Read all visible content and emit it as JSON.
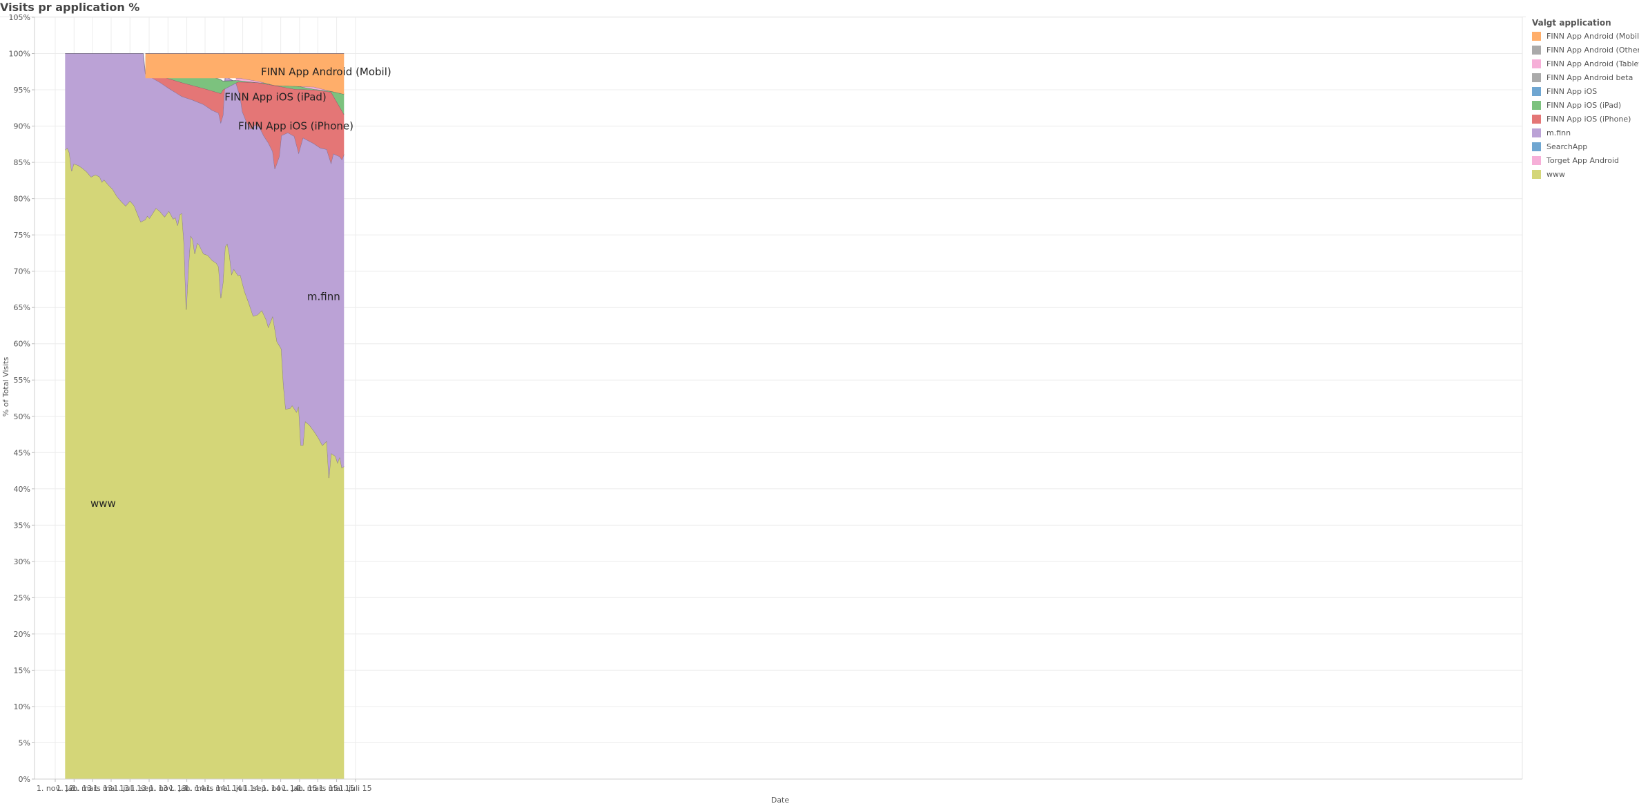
{
  "chart_data": {
    "type": "area",
    "title": "Visits pr application %",
    "xlabel": "Date",
    "ylabel": "% of Total Visits",
    "ylim": [
      0,
      105
    ],
    "y_ticks": [
      "0%",
      "5%",
      "10%",
      "15%",
      "20%",
      "25%",
      "30%",
      "35%",
      "40%",
      "45%",
      "50%",
      "55%",
      "60%",
      "65%",
      "70%",
      "75%",
      "80%",
      "85%",
      "90%",
      "95%",
      "100%",
      "105%"
    ],
    "x_ticks": [
      {
        "label": "1. nov. 12",
        "date": "2012-11-01"
      },
      {
        "label": "1. jan. 13",
        "date": "2013-01-01"
      },
      {
        "label": "1. mars 13",
        "date": "2013-03-01"
      },
      {
        "label": "1. mai 13",
        "date": "2013-05-01"
      },
      {
        "label": "1. juli 13",
        "date": "2013-07-01"
      },
      {
        "label": "1. sep. 13",
        "date": "2013-09-01"
      },
      {
        "label": "1. nov. 13",
        "date": "2013-11-01"
      },
      {
        "label": "1. jan. 14",
        "date": "2014-01-01"
      },
      {
        "label": "1. mars 14",
        "date": "2014-03-01"
      },
      {
        "label": "1. mai 14",
        "date": "2014-05-01"
      },
      {
        "label": "1. juli 14",
        "date": "2014-07-01"
      },
      {
        "label": "1. sep. 14",
        "date": "2014-09-01"
      },
      {
        "label": "1. nov. 14",
        "date": "2014-11-01"
      },
      {
        "label": "1. jan. 15",
        "date": "2015-01-01"
      },
      {
        "label": "1. mars 15",
        "date": "2015-03-01"
      },
      {
        "label": "1. mai 15",
        "date": "2015-05-01"
      },
      {
        "label": "1. juli 15",
        "date": "2015-07-01"
      }
    ],
    "grid": true,
    "legend_position": "right",
    "legend_title": "Valgt application",
    "legend": [
      {
        "name": "FINN App Android (Mobil)",
        "color": "#FFAE6A"
      },
      {
        "name": "FINN App Android (Other)",
        "color": "#AAAAAA"
      },
      {
        "name": "FINN App Android (Tablet)",
        "color": "#F6AFD8"
      },
      {
        "name": "FINN App Android beta",
        "color": "#AAAAAA"
      },
      {
        "name": "FINN App iOS",
        "color": "#6FA6D1"
      },
      {
        "name": "FINN App iOS (iPad)",
        "color": "#7CC27E"
      },
      {
        "name": "FINN App iOS (iPhone)",
        "color": "#E47676"
      },
      {
        "name": "m.finn",
        "color": "#BBA2D6"
      },
      {
        "name": "SearchApp",
        "color": "#6FA6D1"
      },
      {
        "name": "Torget App Android",
        "color": "#F6AFD8"
      },
      {
        "name": "www",
        "color": "#D4D678"
      }
    ],
    "annotations": [
      {
        "text": "FINN App Android (Mobil)",
        "date": "2015-03-28",
        "y": 97.5
      },
      {
        "text": "FINN App iOS (iPad)",
        "date": "2014-10-15",
        "y": 94
      },
      {
        "text": "FINN App iOS (iPhone)",
        "date": "2014-12-20",
        "y": 90
      },
      {
        "text": "m.finn",
        "date": "2015-03-20",
        "y": 66.5
      },
      {
        "text": "www",
        "date": "2013-04-05",
        "y": 38
      }
    ],
    "series": [
      {
        "name": "www",
        "color": "#D4D678",
        "points": [
          [
            "2012-12-03",
            86.7
          ],
          [
            "2012-12-10",
            87.0
          ],
          [
            "2012-12-17",
            86.3
          ],
          [
            "2012-12-24",
            83.8
          ],
          [
            "2012-12-31",
            84.8
          ],
          [
            "2013-01-14",
            84.6
          ],
          [
            "2013-01-28",
            84.2
          ],
          [
            "2013-02-11",
            83.7
          ],
          [
            "2013-02-25",
            83.0
          ],
          [
            "2013-03-11",
            83.3
          ],
          [
            "2013-03-25",
            83.0
          ],
          [
            "2013-04-01",
            82.3
          ],
          [
            "2013-04-08",
            82.6
          ],
          [
            "2013-04-22",
            81.9
          ],
          [
            "2013-05-06",
            81.3
          ],
          [
            "2013-05-20",
            80.3
          ],
          [
            "2013-06-03",
            79.6
          ],
          [
            "2013-06-17",
            79.0
          ],
          [
            "2013-07-01",
            79.7
          ],
          [
            "2013-07-15",
            79.0
          ],
          [
            "2013-07-29",
            77.5
          ],
          [
            "2013-08-05",
            76.8
          ],
          [
            "2013-08-19",
            77.1
          ],
          [
            "2013-08-26",
            77.6
          ],
          [
            "2013-09-02",
            77.3
          ],
          [
            "2013-09-23",
            78.7
          ],
          [
            "2013-10-07",
            78.2
          ],
          [
            "2013-10-21",
            77.5
          ],
          [
            "2013-11-04",
            78.3
          ],
          [
            "2013-11-18",
            77.2
          ],
          [
            "2013-11-25",
            77.4
          ],
          [
            "2013-12-02",
            76.3
          ],
          [
            "2013-12-09",
            77.8
          ],
          [
            "2013-12-16",
            78.0
          ],
          [
            "2013-12-23",
            73.7
          ],
          [
            "2013-12-30",
            64.7
          ],
          [
            "2014-01-06",
            70.4
          ],
          [
            "2014-01-13",
            74.9
          ],
          [
            "2014-01-20",
            74.4
          ],
          [
            "2014-01-27",
            72.4
          ],
          [
            "2014-02-03",
            73.9
          ],
          [
            "2014-02-10",
            73.6
          ],
          [
            "2014-02-24",
            72.4
          ],
          [
            "2014-03-10",
            72.2
          ],
          [
            "2014-03-24",
            71.5
          ],
          [
            "2014-04-07",
            71.1
          ],
          [
            "2014-04-14",
            70.6
          ],
          [
            "2014-04-21",
            66.3
          ],
          [
            "2014-04-28",
            68.4
          ],
          [
            "2014-05-05",
            73.4
          ],
          [
            "2014-05-12",
            73.8
          ],
          [
            "2014-05-19",
            72.3
          ],
          [
            "2014-05-26",
            69.6
          ],
          [
            "2014-06-02",
            70.3
          ],
          [
            "2014-06-16",
            69.4
          ],
          [
            "2014-06-23",
            69.5
          ],
          [
            "2014-07-07",
            67.2
          ],
          [
            "2014-07-21",
            65.6
          ],
          [
            "2014-08-04",
            63.8
          ],
          [
            "2014-08-18",
            64.0
          ],
          [
            "2014-09-01",
            64.6
          ],
          [
            "2014-09-15",
            63.3
          ],
          [
            "2014-09-22",
            62.3
          ],
          [
            "2014-10-06",
            63.8
          ],
          [
            "2014-10-20",
            60.3
          ],
          [
            "2014-11-03",
            59.3
          ],
          [
            "2014-11-10",
            54.3
          ],
          [
            "2014-11-17",
            51.0
          ],
          [
            "2014-12-01",
            51.1
          ],
          [
            "2014-12-08",
            51.5
          ],
          [
            "2014-12-22",
            50.6
          ],
          [
            "2014-12-29",
            51.4
          ],
          [
            "2015-01-05",
            46.0
          ],
          [
            "2015-01-12",
            46.0
          ],
          [
            "2015-01-19",
            49.3
          ],
          [
            "2015-02-02",
            48.8
          ],
          [
            "2015-02-16",
            48.0
          ],
          [
            "2015-03-02",
            47.1
          ],
          [
            "2015-03-16",
            46.0
          ],
          [
            "2015-03-30",
            46.6
          ],
          [
            "2015-04-06",
            41.5
          ],
          [
            "2015-04-13",
            44.9
          ],
          [
            "2015-04-27",
            44.5
          ],
          [
            "2015-05-04",
            43.6
          ],
          [
            "2015-05-11",
            44.4
          ],
          [
            "2015-05-18",
            42.9
          ],
          [
            "2015-05-25",
            43.1
          ]
        ]
      },
      {
        "name": "m.finn",
        "color": "#BBA2D6",
        "points": [
          [
            "2012-12-03",
            100
          ],
          [
            "2013-08-13",
            100
          ],
          [
            "2013-08-20",
            97.2
          ],
          [
            "2013-08-27",
            97.0
          ],
          [
            "2013-10-07",
            96.0
          ],
          [
            "2013-11-04",
            95.2
          ],
          [
            "2013-12-16",
            94.1
          ],
          [
            "2014-01-20",
            93.6
          ],
          [
            "2014-02-24",
            93.0
          ],
          [
            "2014-03-24",
            92.2
          ],
          [
            "2014-04-14",
            91.8
          ],
          [
            "2014-04-21",
            90.5
          ],
          [
            "2014-04-28",
            91.5
          ],
          [
            "2014-05-05",
            96.9
          ],
          [
            "2014-06-09",
            96.0
          ],
          [
            "2014-06-23",
            94.0
          ],
          [
            "2014-06-30",
            92.0
          ],
          [
            "2014-07-14",
            90.5
          ],
          [
            "2014-07-28",
            89.6
          ],
          [
            "2014-08-11",
            90.2
          ],
          [
            "2014-08-25",
            89.8
          ],
          [
            "2014-09-08",
            88.6
          ],
          [
            "2014-09-22",
            87.7
          ],
          [
            "2014-10-06",
            86.5
          ],
          [
            "2014-10-13",
            84.1
          ],
          [
            "2014-10-27",
            85.8
          ],
          [
            "2014-11-03",
            88.7
          ],
          [
            "2014-11-24",
            89.1
          ],
          [
            "2014-12-15",
            88.6
          ],
          [
            "2014-12-29",
            86.3
          ],
          [
            "2015-01-12",
            88.4
          ],
          [
            "2015-02-16",
            87.6
          ],
          [
            "2015-03-09",
            87.0
          ],
          [
            "2015-03-30",
            86.8
          ],
          [
            "2015-04-13",
            84.9
          ],
          [
            "2015-04-20",
            86.2
          ],
          [
            "2015-05-11",
            85.8
          ],
          [
            "2015-05-18",
            85.4
          ],
          [
            "2015-05-25",
            86.1
          ]
        ]
      },
      {
        "name": "FINN App iOS (iPhone)",
        "color": "#E47676",
        "points": [
          [
            "2013-08-20",
            97.6
          ],
          [
            "2013-10-07",
            96.9
          ],
          [
            "2013-12-16",
            96.0
          ],
          [
            "2014-02-24",
            95.2
          ],
          [
            "2014-04-21",
            94.5
          ],
          [
            "2014-04-28",
            95.0
          ],
          [
            "2014-06-16",
            96.1
          ],
          [
            "2014-08-18",
            96.0
          ],
          [
            "2014-10-13",
            95.6
          ],
          [
            "2014-12-15",
            95.1
          ],
          [
            "2015-02-16",
            95.0
          ],
          [
            "2015-04-13",
            94.7
          ],
          [
            "2015-05-25",
            91.6
          ]
        ]
      },
      {
        "name": "FINN App iOS (iPad)",
        "color": "#7CC27E",
        "points": [
          [
            "2013-08-20",
            99.6
          ],
          [
            "2013-11-04",
            98.6
          ],
          [
            "2013-12-16",
            97.7
          ],
          [
            "2014-02-24",
            97.2
          ],
          [
            "2014-04-21",
            96.4
          ],
          [
            "2014-04-28",
            96.2
          ],
          [
            "2014-06-16",
            96.3
          ],
          [
            "2014-08-18",
            96.0
          ],
          [
            "2014-10-13",
            95.9
          ],
          [
            "2014-12-15",
            95.6
          ],
          [
            "2015-02-16",
            95.1
          ],
          [
            "2015-04-13",
            94.8
          ],
          [
            "2015-05-25",
            94.5
          ]
        ]
      },
      {
        "name": "FINN App Android (Tablet)",
        "color": "#F6AFD8",
        "points": [
          [
            "2014-06-09",
            96.6
          ],
          [
            "2014-06-23",
            96.6
          ],
          [
            "2014-08-18",
            96.2
          ],
          [
            "2014-10-13",
            95.6
          ],
          [
            "2014-12-15",
            95.5
          ],
          [
            "2015-02-16",
            95.4
          ],
          [
            "2015-04-13",
            94.8
          ],
          [
            "2015-05-25",
            94.4
          ]
        ]
      },
      {
        "name": "FINN App Android (Mobil)",
        "color": "#FFAE6A",
        "points": [
          [
            "2013-08-20",
            100
          ],
          [
            "2015-05-25",
            100
          ]
        ]
      }
    ]
  }
}
